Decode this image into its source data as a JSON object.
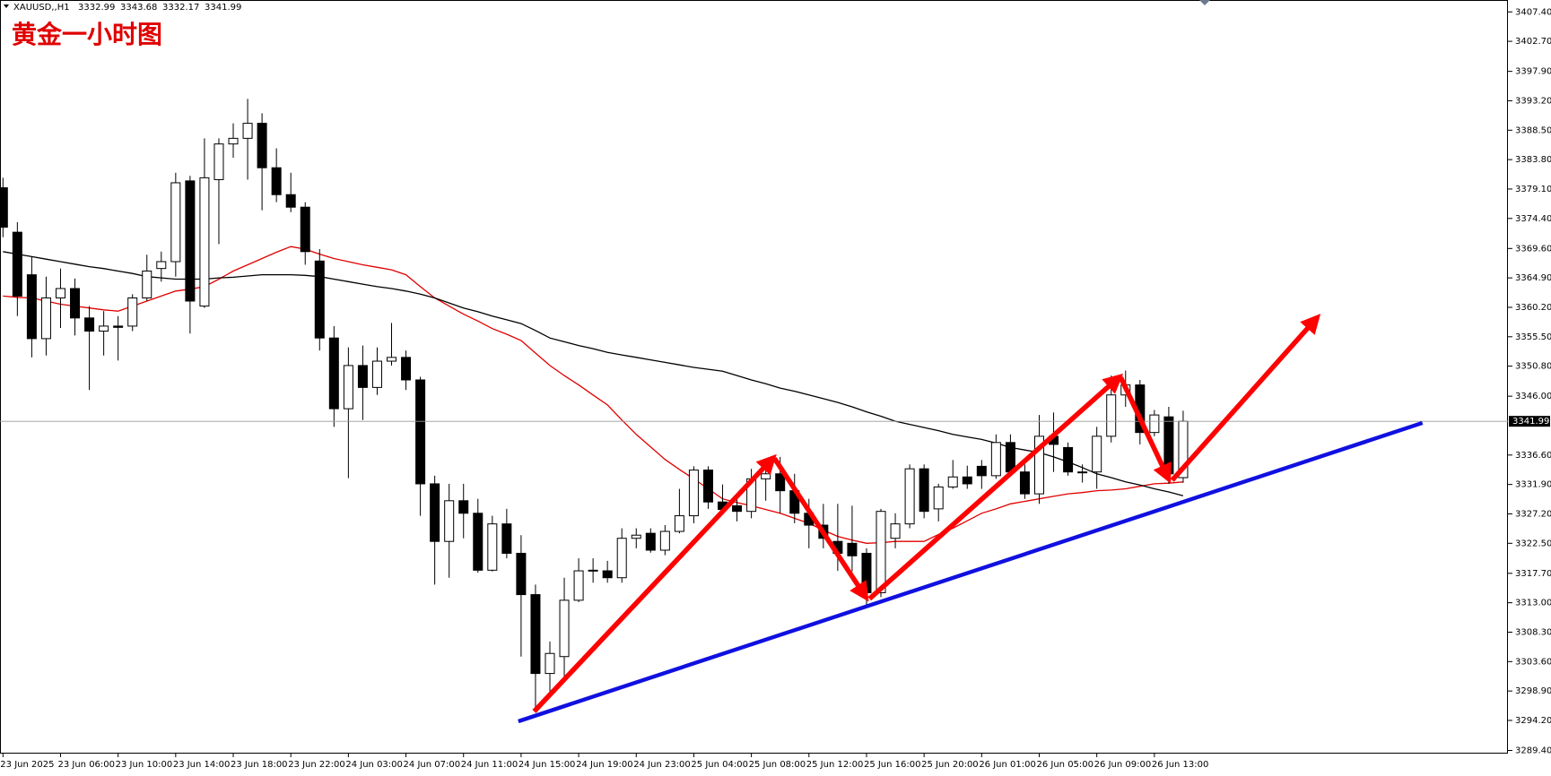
{
  "chart_data": {
    "type": "candlestick",
    "title": "XAUUSD,,H1",
    "annotation": "黄金一小时图",
    "categories": [
      "23 Jun 2025",
      null,
      null,
      null,
      "23 Jun 06:00",
      null,
      null,
      null,
      "23 Jun 10:00",
      null,
      null,
      null,
      "23 Jun 14:00",
      null,
      null,
      null,
      "23 Jun 18:00",
      null,
      null,
      null,
      "23 Jun 22:00",
      null,
      null,
      null,
      "24 Jun 03:00",
      null,
      null,
      null,
      "24 Jun 07:00",
      null,
      null,
      null,
      "24 Jun 11:00",
      null,
      null,
      null,
      "24 Jun 15:00",
      null,
      null,
      null,
      "24 Jun 19:00",
      null,
      null,
      null,
      "24 Jun 23:00",
      null,
      null,
      null,
      "25 Jun 04:00",
      null,
      null,
      null,
      "25 Jun 08:00",
      null,
      null,
      null,
      "25 Jun 12:00",
      null,
      null,
      null,
      "25 Jun 16:00",
      null,
      null,
      null,
      "25 Jun 20:00",
      null,
      null,
      null,
      "26 Jun 01:00",
      null,
      null,
      null,
      "26 Jun 05:00",
      null,
      null,
      null,
      "26 Jun 09:00",
      null,
      null,
      null,
      "26 Jun 13:00",
      null,
      null
    ],
    "open": [
      3379.3,
      3372.2,
      3365.4,
      3355.2,
      3361.7,
      3363.2,
      3358.5,
      3356.4,
      3357.2,
      3357.2,
      3361.7,
      3366.4,
      3367.5,
      3380.4,
      3360.4,
      3380.6,
      3386.3,
      3387.2,
      3389.6,
      3382.5,
      3378.2,
      3376.2,
      3367.6,
      3355.3,
      3344.0,
      3350.9,
      3347.4,
      3351.6,
      3352.2,
      3348.6,
      3332.0,
      3322.8,
      3329.3,
      3327.3,
      3318.2,
      3325.6,
      3320.9,
      3314.3,
      3301.7,
      3304.4,
      3313.4,
      3318.1,
      3318.1,
      3317.0,
      3323.3,
      3324.1,
      3321.4,
      3324.4,
      3326.9,
      3334.2,
      3329.1,
      3328.5,
      3327.6,
      3332.8,
      3333.6,
      3330.9,
      3327.3,
      3325.4,
      3322.8,
      3322.5,
      3320.9,
      3314.6,
      3323.3,
      3325.6,
      3334.4,
      3328.0,
      3331.5,
      3333.1,
      3334.8,
      3333.3,
      3338.6,
      3333.9,
      3330.4,
      3339.6,
      3337.8,
      3333.9,
      3333.9,
      3339.6,
      3346.2,
      3347.8,
      3340.2,
      3342.7,
      3332.99
    ],
    "high": [
      3380.9,
      3373.8,
      3368.3,
      3365.1,
      3366.4,
      3364.8,
      3360.4,
      3359.6,
      3358.8,
      3362.3,
      3368.6,
      3369.1,
      3381.7,
      3381.2,
      3387.2,
      3387.2,
      3389.6,
      3393.5,
      3391.2,
      3385.6,
      3381.7,
      3377.0,
      3369.5,
      3357.2,
      3353.8,
      3354.1,
      3353.8,
      3357.7,
      3353.3,
      3349.1,
      3333.3,
      3332.0,
      3332.0,
      3329.6,
      3326.9,
      3328.0,
      3323.8,
      3315.9,
      3306.8,
      3317.0,
      3320.1,
      3320.1,
      3319.7,
      3324.9,
      3324.9,
      3324.9,
      3325.4,
      3331.2,
      3334.8,
      3334.8,
      3331.9,
      3329.6,
      3334.4,
      3335.2,
      3336.3,
      3333.6,
      3329.6,
      3328.8,
      3328.8,
      3328.5,
      3321.7,
      3328.0,
      3327.3,
      3335.1,
      3335.1,
      3332.0,
      3335.8,
      3334.9,
      3335.8,
      3339.9,
      3339.9,
      3335.1,
      3343.0,
      3343.4,
      3338.6,
      3335.1,
      3341.1,
      3349.3,
      3350.1,
      3348.6,
      3343.8,
      3344.3,
      3343.68
    ],
    "low": [
      3371.4,
      3358.8,
      3352.2,
      3352.5,
      3356.9,
      3355.7,
      3347.0,
      3352.5,
      3351.7,
      3356.4,
      3361.2,
      3364.3,
      3365.1,
      3356.0,
      3360.1,
      3370.3,
      3384.1,
      3380.6,
      3375.7,
      3377.0,
      3375.4,
      3367.0,
      3353.3,
      3341.1,
      3332.9,
      3342.2,
      3346.2,
      3350.9,
      3347.0,
      3326.9,
      3315.9,
      3317.0,
      3323.3,
      3317.8,
      3318.0,
      3320.1,
      3304.4,
      3296.0,
      3298.1,
      3300.8,
      3313.1,
      3316.2,
      3316.2,
      3316.2,
      3321.7,
      3321.0,
      3320.6,
      3324.1,
      3325.7,
      3328.0,
      3327.3,
      3326.0,
      3326.5,
      3329.3,
      3327.3,
      3325.7,
      3321.7,
      3321.7,
      3318.1,
      3318.0,
      3312.7,
      3313.9,
      3321.7,
      3324.9,
      3326.5,
      3326.0,
      3331.2,
      3331.2,
      3331.2,
      3332.8,
      3333.3,
      3329.6,
      3328.8,
      3333.9,
      3333.3,
      3332.2,
      3331.2,
      3338.6,
      3344.3,
      3338.3,
      3339.6,
      3332.0,
      3332.17
    ],
    "close": [
      3373.0,
      3362.0,
      3355.2,
      3361.7,
      3363.2,
      3358.5,
      3356.4,
      3357.2,
      3357.0,
      3361.7,
      3366.0,
      3367.5,
      3380.1,
      3361.2,
      3380.9,
      3386.3,
      3387.2,
      3389.6,
      3382.5,
      3378.2,
      3376.2,
      3369.1,
      3355.3,
      3344.0,
      3350.9,
      3347.4,
      3351.6,
      3352.2,
      3348.6,
      3332.0,
      3322.8,
      3329.3,
      3327.3,
      3318.2,
      3325.6,
      3320.9,
      3314.3,
      3301.7,
      3304.9,
      3313.4,
      3318.1,
      3318.2,
      3317.0,
      3323.3,
      3323.8,
      3321.4,
      3324.4,
      3326.9,
      3334.2,
      3329.1,
      3327.9,
      3327.6,
      3332.8,
      3333.6,
      3330.9,
      3327.3,
      3325.4,
      3323.3,
      3320.9,
      3320.5,
      3314.6,
      3327.6,
      3325.6,
      3334.4,
      3327.6,
      3331.5,
      3333.1,
      3332.0,
      3333.3,
      3338.6,
      3333.9,
      3330.4,
      3339.6,
      3338.3,
      3333.9,
      3333.8,
      3339.6,
      3346.2,
      3347.8,
      3340.2,
      3343.0,
      3333.6,
      3341.99
    ],
    "up_color": "#ffffff",
    "down_color": "#000000",
    "lines": [
      {
        "color": "#e00000",
        "values": [
          3362.0,
          3361.8,
          3361.7,
          3361.2,
          3360.7,
          3360.4,
          3360.1,
          3359.8,
          3359.6,
          3360.4,
          3361.2,
          3362.0,
          3362.8,
          3363.1,
          3363.5,
          3364.7,
          3366.0,
          3367.0,
          3368.0,
          3369.0,
          3369.9,
          3369.5,
          3368.7,
          3368.0,
          3367.5,
          3367.0,
          3366.6,
          3366.2,
          3365.4,
          3363.5,
          3361.7,
          3360.4,
          3359.1,
          3358.0,
          3356.8,
          3355.9,
          3354.9,
          3352.9,
          3350.9,
          3349.3,
          3347.8,
          3346.2,
          3344.6,
          3342.2,
          3339.9,
          3337.9,
          3335.9,
          3334.3,
          3332.8,
          3331.2,
          3329.6,
          3329.0,
          3328.5,
          3327.9,
          3327.3,
          3326.5,
          3325.7,
          3324.6,
          3323.6,
          3323.0,
          3322.5,
          3322.6,
          3322.8,
          3322.8,
          3322.8,
          3323.9,
          3324.9,
          3326.1,
          3327.3,
          3328.0,
          3328.8,
          3329.2,
          3329.6,
          3330.0,
          3330.4,
          3330.6,
          3330.9,
          3331.0,
          3331.2,
          3331.6,
          3332.0,
          3332.1,
          3332.3
        ]
      },
      {
        "color": "#000000",
        "values": [
          3369.1,
          3368.7,
          3368.3,
          3367.9,
          3367.5,
          3367.1,
          3366.7,
          3366.4,
          3366.0,
          3365.6,
          3365.1,
          3364.9,
          3364.7,
          3364.7,
          3364.7,
          3364.9,
          3365.0,
          3365.2,
          3365.4,
          3365.4,
          3365.4,
          3365.3,
          3365.1,
          3364.7,
          3364.3,
          3363.9,
          3363.5,
          3363.2,
          3362.8,
          3362.3,
          3361.7,
          3360.9,
          3360.1,
          3359.5,
          3358.8,
          3358.2,
          3357.6,
          3356.5,
          3355.3,
          3354.7,
          3354.1,
          3353.6,
          3353.0,
          3352.6,
          3352.2,
          3351.8,
          3351.4,
          3351.0,
          3350.6,
          3350.3,
          3350.0,
          3349.3,
          3348.6,
          3348.0,
          3347.3,
          3346.8,
          3346.2,
          3345.6,
          3345.0,
          3344.3,
          3343.5,
          3342.8,
          3342.0,
          3341.5,
          3341.0,
          3340.5,
          3339.9,
          3339.5,
          3339.1,
          3338.5,
          3337.8,
          3337.4,
          3337.0,
          3336.3,
          3335.5,
          3334.6,
          3333.6,
          3333.0,
          3332.3,
          3331.8,
          3331.2,
          3330.7,
          3330.1
        ]
      }
    ],
    "ylim": [
      3288.9,
      3409.3
    ],
    "yticks": [
      {
        "value": 3289.4,
        "label": "3289.40"
      },
      {
        "value": 3294.2,
        "label": "3294.20"
      },
      {
        "value": 3298.9,
        "label": "3298.90"
      },
      {
        "value": 3303.6,
        "label": "3303.60"
      },
      {
        "value": 3308.3,
        "label": "3308.30"
      },
      {
        "value": 3313,
        "label": "3313.00"
      },
      {
        "value": 3317.7,
        "label": "3317.70"
      },
      {
        "value": 3322.5,
        "label": "3322.50"
      },
      {
        "value": 3327.2,
        "label": "3327.20"
      },
      {
        "value": 3331.9,
        "label": "3331.90"
      },
      {
        "value": 3336.6,
        "label": "3336.60"
      },
      {
        "value": 3346,
        "label": "3346.00"
      },
      {
        "value": 3350.8,
        "label": "3350.80"
      },
      {
        "value": 3355.5,
        "label": "3355.50"
      },
      {
        "value": 3360.2,
        "label": "3360.20"
      },
      {
        "value": 3364.9,
        "label": "3364.90"
      },
      {
        "value": 3369.6,
        "label": "3369.60"
      },
      {
        "value": 3374.4,
        "label": "3374.40"
      },
      {
        "value": 3379.1,
        "label": "3379.10"
      },
      {
        "value": 3383.8,
        "label": "3383.80"
      },
      {
        "value": 3388.5,
        "label": "3388.50"
      },
      {
        "value": 3393.2,
        "label": "3393.20"
      },
      {
        "value": 3397.9,
        "label": "3397.90"
      },
      {
        "value": 3402.7,
        "label": "3402.70"
      },
      {
        "value": 3407.4,
        "label": "3407.40"
      }
    ],
    "grid": false
  }
}
